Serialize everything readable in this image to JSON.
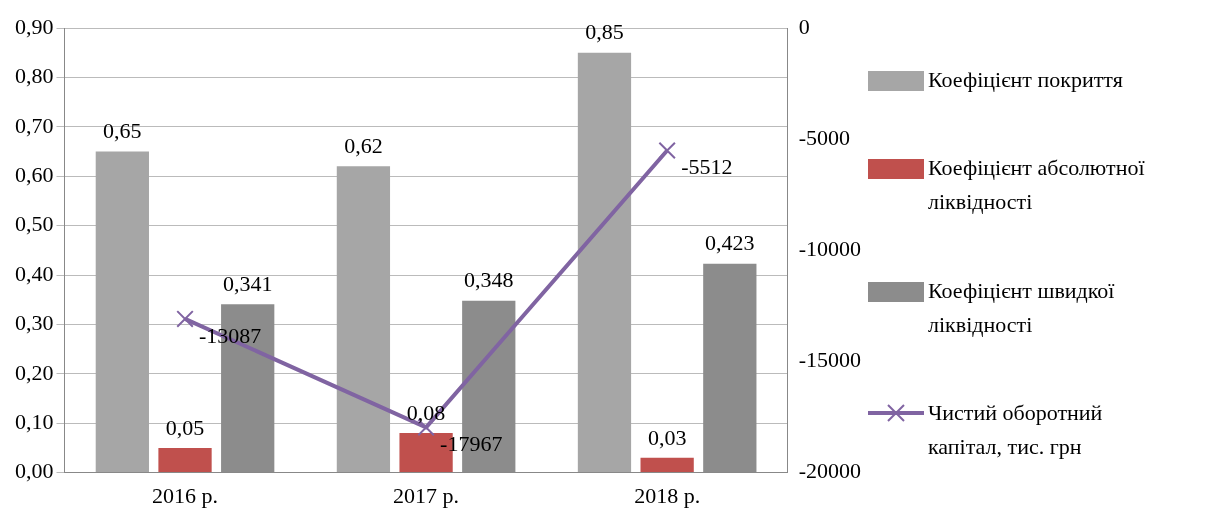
{
  "chart_data": {
    "type": "bar",
    "categories": [
      "2016 р.",
      "2017 р.",
      "2018 р."
    ],
    "series": [
      {
        "name": "Коефіцієнт покриття",
        "color": "#a6a6a6",
        "values": [
          0.65,
          0.62,
          0.85
        ],
        "value_labels": [
          "0,65",
          "0,62",
          "0,85"
        ]
      },
      {
        "name": "Коефіцієнт абсолютної ліквідності",
        "color": "#c0504d",
        "values": [
          0.05,
          0.08,
          0.03
        ],
        "value_labels": [
          "0,05",
          "0,08",
          "0,03"
        ]
      },
      {
        "name": "Коефіцієнт швидкої ліквідності",
        "color": "#8c8c8c",
        "values": [
          0.341,
          0.348,
          0.423
        ],
        "value_labels": [
          "0,341",
          "0,348",
          "0,423"
        ]
      },
      {
        "name": "Чистий оборотний капітал, тис. грн",
        "type": "line",
        "axis": "y2",
        "color": "#8064a2",
        "marker": "cross",
        "values": [
          -13087,
          -17967,
          -5512
        ],
        "value_labels": [
          "-13087",
          "-17967",
          "-5512"
        ]
      }
    ],
    "ylim": [
      0,
      0.9
    ],
    "yticks": [
      {
        "value": 0,
        "label": "0,00"
      },
      {
        "value": 0.1,
        "label": "0,10"
      },
      {
        "value": 0.2,
        "label": "0,20"
      },
      {
        "value": 0.3,
        "label": "0,30"
      },
      {
        "value": 0.4,
        "label": "0,40"
      },
      {
        "value": 0.5,
        "label": "0,50"
      },
      {
        "value": 0.6,
        "label": "0,60"
      },
      {
        "value": 0.7,
        "label": "0,70"
      },
      {
        "value": 0.8,
        "label": "0,80"
      },
      {
        "value": 0.9,
        "label": "0,90"
      }
    ],
    "y2lim": [
      -20000,
      0
    ],
    "y2ticks": [
      -20000,
      -15000,
      -10000,
      -5000,
      0
    ],
    "grid": "y",
    "legend": "right"
  }
}
